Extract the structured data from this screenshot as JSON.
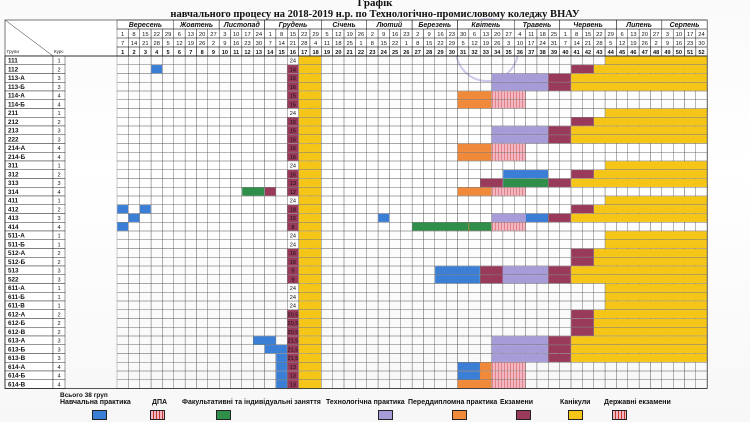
{
  "title_line1": "Графік",
  "title_line2": "навчального процесу  на 2018-2019 н.р. по Технологічно-промисловому коледжу ВНАУ",
  "months": [
    "Вересень",
    "Жовтень",
    "Листопад",
    "Грудень",
    "Січень",
    "Лютий",
    "Березень",
    "Квітень",
    "Травень",
    "Червень",
    "Липень",
    "Серпень"
  ],
  "dates_row1": [
    "1",
    "8",
    "15",
    "22",
    "29",
    "6",
    "13",
    "20",
    "27",
    "3",
    "10",
    "17",
    "24",
    "1",
    "8",
    "15",
    "22",
    "29",
    "5",
    "12",
    "19",
    "26",
    "2",
    "9",
    "16",
    "23",
    "2",
    "9",
    "16",
    "23",
    "30",
    "6",
    "13",
    "20",
    "27",
    "4",
    "11",
    "18",
    "25",
    "1",
    "8",
    "15",
    "22",
    "29",
    "6",
    "13",
    "20",
    "27",
    "3",
    "10",
    "17",
    "24"
  ],
  "dates_row2": [
    "7",
    "14",
    "21",
    "28",
    "5",
    "12",
    "19",
    "26",
    "2",
    "9",
    "16",
    "23",
    "30",
    "7",
    "14",
    "21",
    "28",
    "4",
    "11",
    "18",
    "25",
    "1",
    "8",
    "15",
    "22",
    "1",
    "8",
    "15",
    "22",
    "29",
    "5",
    "12",
    "19",
    "26",
    "3",
    "10",
    "17",
    "24",
    "31",
    "7",
    "14",
    "21",
    "28",
    "5",
    "12",
    "19",
    "26",
    "2",
    "9",
    "16",
    "23",
    "30"
  ],
  "week_header_label": "Групи",
  "week_header_course": "Курс",
  "groups": [
    {
      "name": "111",
      "course": "1",
      "total": "24"
    },
    {
      "name": "112",
      "course": "2",
      "total": "14"
    },
    {
      "name": "113-А",
      "course": "3",
      "total": "16"
    },
    {
      "name": "113-Б",
      "course": "3",
      "total": "16"
    },
    {
      "name": "114-А",
      "course": "4",
      "total": "15"
    },
    {
      "name": "114-Б",
      "course": "4",
      "total": "15"
    },
    {
      "name": "211",
      "course": "1",
      "total": "24"
    },
    {
      "name": "212",
      "course": "2",
      "total": "16"
    },
    {
      "name": "213",
      "course": "3",
      "total": "15"
    },
    {
      "name": "222",
      "course": "3",
      "total": "16"
    },
    {
      "name": "214-А",
      "course": "4",
      "total": "16"
    },
    {
      "name": "214-Б",
      "course": "4",
      "total": "16"
    },
    {
      "name": "311",
      "course": "1",
      "total": "24"
    },
    {
      "name": "312",
      "course": "2",
      "total": "16"
    },
    {
      "name": "313",
      "course": "3",
      "total": "13"
    },
    {
      "name": "314",
      "course": "4",
      "total": "12"
    },
    {
      "name": "411",
      "course": "1",
      "total": "24"
    },
    {
      "name": "412",
      "course": "2",
      "total": "18"
    },
    {
      "name": "413",
      "course": "3",
      "total": "16"
    },
    {
      "name": "414",
      "course": "4",
      "total": "8"
    },
    {
      "name": "511-А",
      "course": "1",
      "total": "24"
    },
    {
      "name": "511-Б",
      "course": "1",
      "total": "24"
    },
    {
      "name": "512-А",
      "course": "2",
      "total": "16"
    },
    {
      "name": "512-Б",
      "course": "2",
      "total": "16"
    },
    {
      "name": "513",
      "course": "3",
      "total": "9"
    },
    {
      "name": "522",
      "course": "3",
      "total": "9"
    },
    {
      "name": "611-А",
      "course": "1",
      "total": "24"
    },
    {
      "name": "611-Б",
      "course": "1",
      "total": "24"
    },
    {
      "name": "611-В",
      "course": "1",
      "total": "24"
    },
    {
      "name": "612-А",
      "course": "2",
      "total": "20,5"
    },
    {
      "name": "612-Б",
      "course": "2",
      "total": "20,5"
    },
    {
      "name": "612-В",
      "course": "2",
      "total": "20,5"
    },
    {
      "name": "613-А",
      "course": "3",
      "total": "21,5"
    },
    {
      "name": "613-Б",
      "course": "3",
      "total": "21,5"
    },
    {
      "name": "613-В",
      "course": "3",
      "total": "21,5"
    },
    {
      "name": "614-А",
      "course": "4",
      "total": "13"
    },
    {
      "name": "614-Б",
      "course": "4",
      "total": "13"
    },
    {
      "name": "614-В",
      "course": "4",
      "total": "13"
    }
  ],
  "total_groups": "Всього 38 груп",
  "legend": [
    {
      "label": "Навчальна практика",
      "color": "#3a7fd5",
      "pattern": "solid"
    },
    {
      "label": "ДПА",
      "color": "#f4b6c2",
      "pattern": "hatch"
    },
    {
      "label": "Факультативні та індивідуальні заняття",
      "color": "#2f8f4a",
      "pattern": "solid"
    },
    {
      "label": "Технологічна практика",
      "color": "#a79bd8",
      "pattern": "solid"
    },
    {
      "label": "Переддипломна практика",
      "color": "#f0893a",
      "pattern": "solid"
    },
    {
      "label": "Екзамени",
      "color": "#9a3a5a",
      "pattern": "solid"
    },
    {
      "label": "Канікули",
      "color": "#f5c518",
      "pattern": "solid"
    },
    {
      "label": "Державні екзамени",
      "color": "#f4b6c2",
      "pattern": "hatch"
    }
  ],
  "colors": {
    "practice": "#3a7fd5",
    "dpa": "#f4b6c2",
    "electives": "#2f8f4a",
    "tech": "#a79bd8",
    "prediploma": "#f0893a",
    "exams": "#9a3a5a",
    "holidays": "#f5c518",
    "state": "#f4b6c2"
  }
}
